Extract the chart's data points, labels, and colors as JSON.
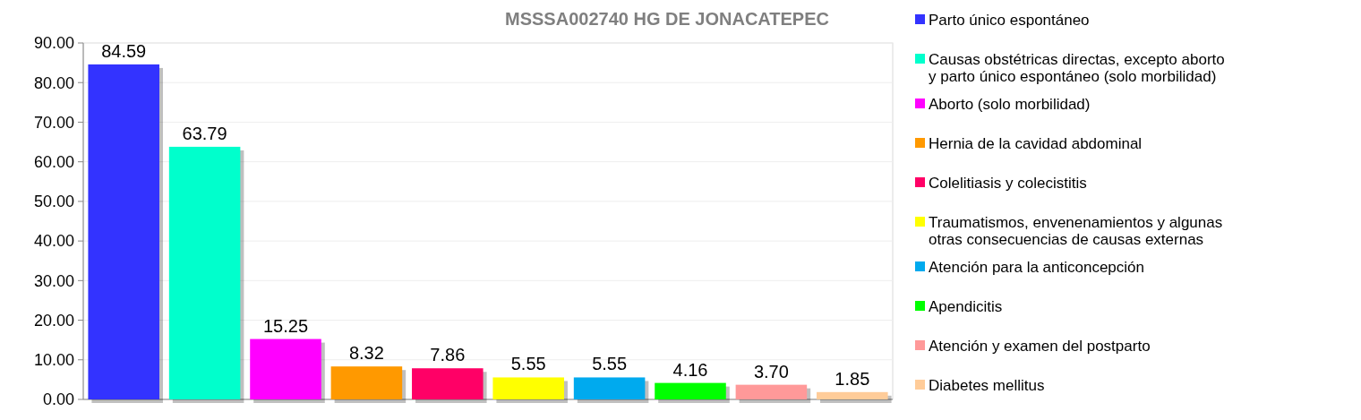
{
  "chart_data": {
    "type": "bar",
    "title": "MSSSA002740 HG DE JONACATEPEC",
    "categories": [
      null,
      null,
      null,
      null,
      null,
      null,
      null,
      null,
      null,
      null
    ],
    "series": [
      {
        "name": "Parto único espontáneo",
        "color": "#3333ff",
        "values": [
          84.59,
          null,
          null,
          null,
          null,
          null,
          null,
          null,
          null,
          null
        ]
      },
      {
        "name": "Causas obstétricas directas, excepto aborto y parto único espontáneo (solo morbilidad)",
        "color": "#00ffcc",
        "values": [
          null,
          63.79,
          null,
          null,
          null,
          null,
          null,
          null,
          null,
          null
        ]
      },
      {
        "name": "Aborto (solo morbilidad)",
        "color": "#ff00ff",
        "values": [
          null,
          null,
          15.25,
          null,
          null,
          null,
          null,
          null,
          null,
          null
        ]
      },
      {
        "name": "Hernia de la cavidad abdominal",
        "color": "#ff9900",
        "values": [
          null,
          null,
          null,
          8.32,
          null,
          null,
          null,
          null,
          null,
          null
        ]
      },
      {
        "name": "Colelitiasis y colecistitis",
        "color": "#ff0066",
        "values": [
          null,
          null,
          null,
          null,
          7.86,
          null,
          null,
          null,
          null,
          null
        ]
      },
      {
        "name": "Traumatismos, envenenamientos y algunas otras consecuencias de causas externas",
        "color": "#ffff00",
        "values": [
          null,
          null,
          null,
          null,
          null,
          5.55,
          null,
          null,
          null,
          null
        ]
      },
      {
        "name": "Atención para la anticoncepción",
        "color": "#00aaee",
        "values": [
          null,
          null,
          null,
          null,
          null,
          null,
          5.55,
          null,
          null,
          null
        ]
      },
      {
        "name": "Apendicitis",
        "color": "#00ff00",
        "values": [
          null,
          null,
          null,
          null,
          null,
          null,
          null,
          4.16,
          null,
          null
        ]
      },
      {
        "name": "Atención y examen del postparto",
        "color": "#ff9999",
        "values": [
          null,
          null,
          null,
          null,
          null,
          null,
          null,
          null,
          3.7,
          null
        ],
        "value_labels": [
          null,
          null,
          null,
          null,
          null,
          null,
          null,
          null,
          "3.70",
          null
        ]
      },
      {
        "name": "Diabetes mellitus",
        "color": "#ffcc99",
        "values": [
          null,
          null,
          null,
          null,
          null,
          null,
          null,
          null,
          null,
          1.85
        ]
      }
    ],
    "ylim": [
      0,
      90
    ],
    "yticks": [
      {
        "value": 0,
        "label": "0.00"
      },
      {
        "value": 10,
        "label": "10.00"
      },
      {
        "value": 20,
        "label": "20.00"
      },
      {
        "value": 30,
        "label": "30.00"
      },
      {
        "value": 40,
        "label": "40.00"
      },
      {
        "value": 50,
        "label": "50.00"
      },
      {
        "value": 60,
        "label": "60.00"
      },
      {
        "value": 70,
        "label": "70.00"
      },
      {
        "value": 80,
        "label": "80.00"
      },
      {
        "value": 90,
        "label": "90.00"
      }
    ],
    "grid": "y",
    "legend": "right",
    "tick_labels": "y",
    "data_labels": true
  }
}
